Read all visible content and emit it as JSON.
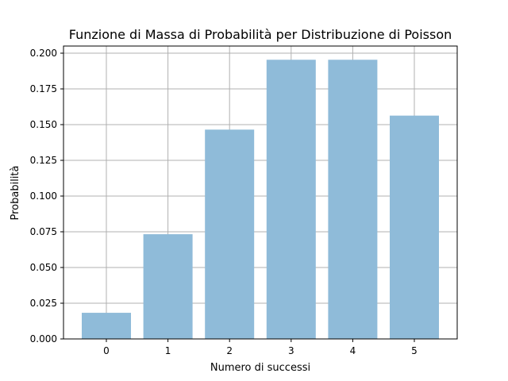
{
  "chart_data": {
    "type": "bar",
    "title": "Funzione di Massa di Probabilità per Distribuzione di Poisson",
    "xlabel": "Numero di successi",
    "ylabel": "Probabilità",
    "categories": [
      "0",
      "1",
      "2",
      "3",
      "4",
      "5"
    ],
    "values": [
      0.0183,
      0.0733,
      0.1465,
      0.1954,
      0.1954,
      0.1563
    ],
    "ylim": [
      0,
      0.205
    ],
    "yticks": [
      "0.000",
      "0.025",
      "0.050",
      "0.075",
      "0.100",
      "0.125",
      "0.150",
      "0.175",
      "0.200"
    ],
    "grid": true,
    "bar_color": "#8fbbd9",
    "grid_color": "#b0b0b0"
  }
}
